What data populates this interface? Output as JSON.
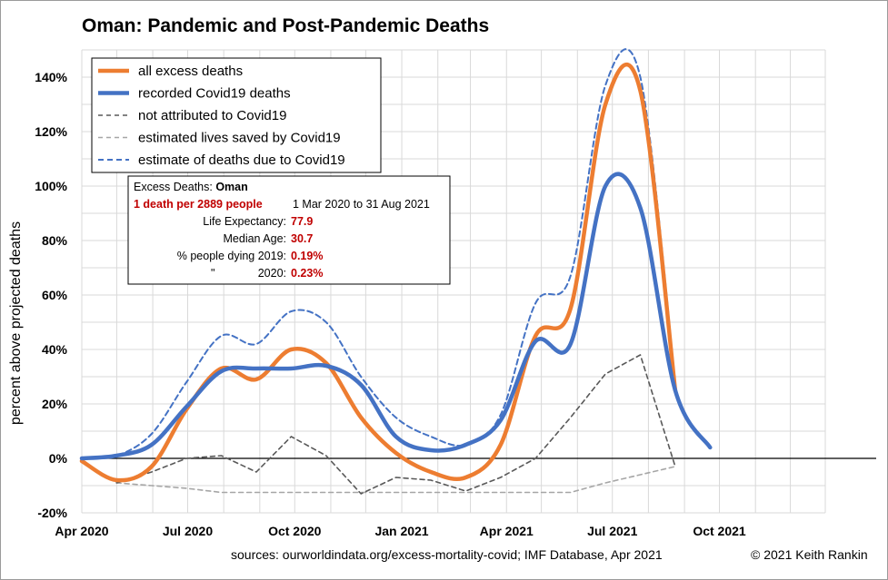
{
  "chart_data": {
    "type": "line",
    "title_country": "Oman",
    "title_rest": ": Pandemic and Post-Pandemic Deaths",
    "ylabel": "percent above projected deaths",
    "ylim": [
      -20,
      150
    ],
    "yticks": [
      -20,
      0,
      20,
      40,
      60,
      80,
      100,
      120,
      140
    ],
    "ytick_labels": [
      "-20%",
      "0%",
      "20%",
      "40%",
      "60%",
      "80%",
      "100%",
      "120%",
      "140%"
    ],
    "xlim": [
      "2020-04-01",
      "2021-12-31"
    ],
    "xticks": [
      "2020-04-01",
      "2020-07-01",
      "2020-10-01",
      "2021-01-01",
      "2021-04-01",
      "2021-07-01",
      "2021-10-01"
    ],
    "xtick_labels": [
      "Apr 2020",
      "Jul 2020",
      "Oct 2020",
      "Jan 2021",
      "Apr 2021",
      "Jul 2021",
      "Oct 2021"
    ],
    "grid": true,
    "legend_position": "top-left",
    "series": [
      {
        "name": "all excess deaths",
        "color": "#ed7d31",
        "style": "solid-thick",
        "x": [
          "2020-04-01",
          "2020-05-01",
          "2020-05-31",
          "2020-06-30",
          "2020-07-30",
          "2020-08-29",
          "2020-09-28",
          "2020-10-28",
          "2020-11-27",
          "2020-12-27",
          "2021-01-26",
          "2021-02-25",
          "2021-03-27",
          "2021-04-26",
          "2021-05-26",
          "2021-06-25",
          "2021-07-25",
          "2021-08-24"
        ],
        "y": [
          -1,
          -8,
          -3,
          18,
          33,
          29,
          40,
          35,
          15,
          2,
          -5,
          -7,
          5,
          45,
          55,
          130,
          135,
          25
        ]
      },
      {
        "name": "recorded Covid19 deaths",
        "color": "#4472c4",
        "style": "solid-thick",
        "x": [
          "2020-04-01",
          "2020-05-01",
          "2020-05-31",
          "2020-06-30",
          "2020-07-30",
          "2020-08-29",
          "2020-09-28",
          "2020-10-28",
          "2020-11-27",
          "2020-12-27",
          "2021-01-26",
          "2021-02-25",
          "2021-03-27",
          "2021-04-26",
          "2021-05-26",
          "2021-06-25",
          "2021-07-25",
          "2021-08-24",
          "2021-09-23"
        ],
        "y": [
          0,
          1,
          5,
          19,
          32,
          33,
          33,
          34,
          27,
          8,
          3,
          5,
          14,
          43,
          42,
          100,
          92,
          25,
          4
        ]
      },
      {
        "name": "not attributed to Covid19",
        "color": "#595959",
        "style": "dashed",
        "x": [
          "2020-04-01",
          "2020-05-01",
          "2020-05-31",
          "2020-06-30",
          "2020-07-30",
          "2020-08-29",
          "2020-09-28",
          "2020-10-28",
          "2020-11-27",
          "2020-12-27",
          "2021-01-26",
          "2021-02-25",
          "2021-03-27",
          "2021-04-26",
          "2021-05-26",
          "2021-06-25",
          "2021-07-25",
          "2021-08-24"
        ],
        "y": [
          -1,
          -9,
          -5,
          0,
          1,
          -5,
          8,
          1,
          -13,
          -7,
          -8,
          -12,
          -7,
          0,
          15,
          31,
          38,
          -3
        ]
      },
      {
        "name": "estimated lives saved by Covid19",
        "color": "#a6a6a6",
        "style": "dashed",
        "x": [
          "2020-04-01",
          "2020-05-01",
          "2020-05-31",
          "2020-06-30",
          "2020-07-30",
          "2020-08-29",
          "2020-09-28",
          "2020-10-28",
          "2020-11-27",
          "2020-12-27",
          "2021-01-26",
          "2021-02-25",
          "2021-03-27",
          "2021-04-26",
          "2021-05-26",
          "2021-06-25",
          "2021-07-25",
          "2021-08-24"
        ],
        "y": [
          -1,
          -9,
          -10,
          -11,
          -12.5,
          -12.5,
          -12.5,
          -12.5,
          -12.5,
          -12.5,
          -12.5,
          -12.5,
          -12.5,
          -12.5,
          -12.5,
          -9,
          -6,
          -3
        ]
      },
      {
        "name": "estimate of deaths due to Covid19",
        "color": "#4472c4",
        "style": "dashed",
        "x": [
          "2020-04-01",
          "2020-05-01",
          "2020-05-31",
          "2020-06-30",
          "2020-07-30",
          "2020-08-29",
          "2020-09-28",
          "2020-10-28",
          "2020-11-27",
          "2020-12-27",
          "2021-01-26",
          "2021-02-25",
          "2021-03-27",
          "2021-04-26",
          "2021-05-26",
          "2021-06-25",
          "2021-07-25",
          "2021-08-24"
        ],
        "y": [
          0,
          1,
          9,
          28,
          45,
          42,
          54,
          50,
          30,
          15,
          8,
          5,
          16,
          57,
          67,
          137,
          140,
          28
        ]
      }
    ],
    "info_box": {
      "title_label": "Excess Deaths: ",
      "title_country": "Oman",
      "headline": "1 death per 2889 people",
      "period": "1 Mar 2020 to 31 Aug 2021",
      "rows": [
        {
          "label": "Life Expectancy:",
          "value": "77.9"
        },
        {
          "label": "Median Age:",
          "value": "30.7"
        },
        {
          "label": "% people dying 2019:",
          "value": "0.19%"
        },
        {
          "label": "2020:",
          "value": "0.23%",
          "ditto": "\""
        }
      ]
    },
    "sources": "sources:  ourworldindata.org/excess-mortality-covid;  IMF Database, Apr 2021",
    "copyright": "© 2021 Keith Rankin"
  }
}
